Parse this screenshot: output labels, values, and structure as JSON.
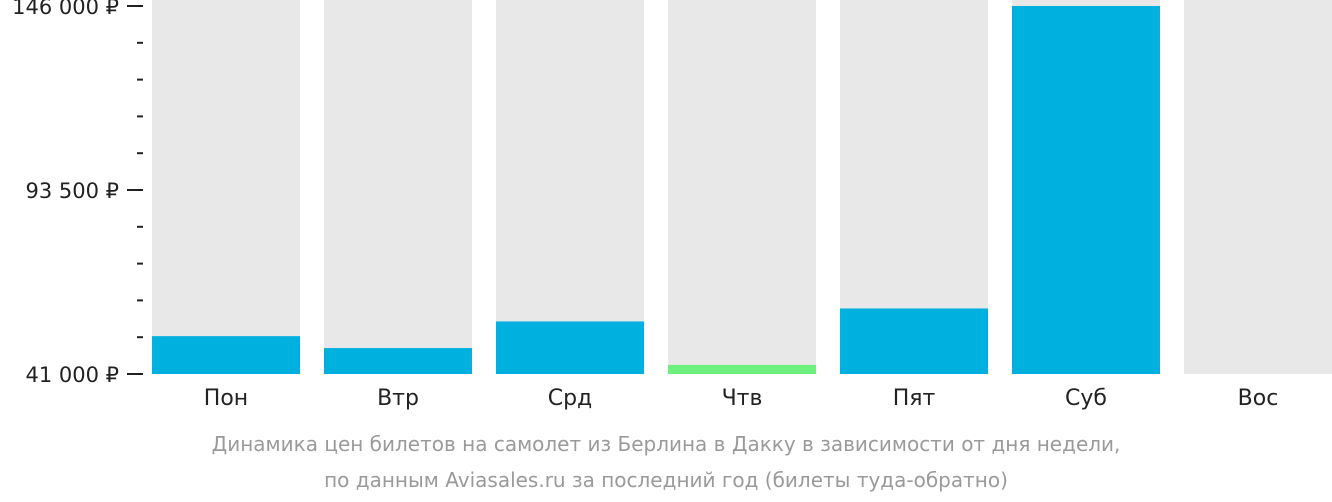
{
  "chart_data": {
    "type": "bar",
    "title": "",
    "xlabel": "",
    "ylabel": "",
    "categories": [
      "Пон",
      "Втр",
      "Срд",
      "Чтв",
      "Пят",
      "Суб",
      "Вос"
    ],
    "values": [
      51800,
      48400,
      56000,
      43600,
      59700,
      146000,
      null
    ],
    "ylim": [
      41000,
      146000
    ],
    "y_tick_labels": [
      {
        "value": 146000,
        "label": "146 000 ₽"
      },
      {
        "value": 93500,
        "label": "93 500 ₽"
      },
      {
        "value": 41000,
        "label": "41 000 ₽"
      }
    ],
    "y_minor_tick_values": [
      135500,
      125000,
      114500,
      104000,
      83000,
      72500,
      62000,
      51500
    ],
    "grid": false,
    "legend": "none",
    "colors": {
      "bar": "#00b0de",
      "min_bar": "#6ef07f",
      "track": "#e8e8e8",
      "axis_text": "#222222",
      "caption_text": "#9a9a9a"
    },
    "min_category": "Чтв"
  },
  "caption": {
    "line1": "Динамика цен билетов на самолет из Берлина в Дакку в зависимости от дня недели,",
    "line2": "по данным Aviasales.ru за последний год (билеты туда-обратно)"
  }
}
